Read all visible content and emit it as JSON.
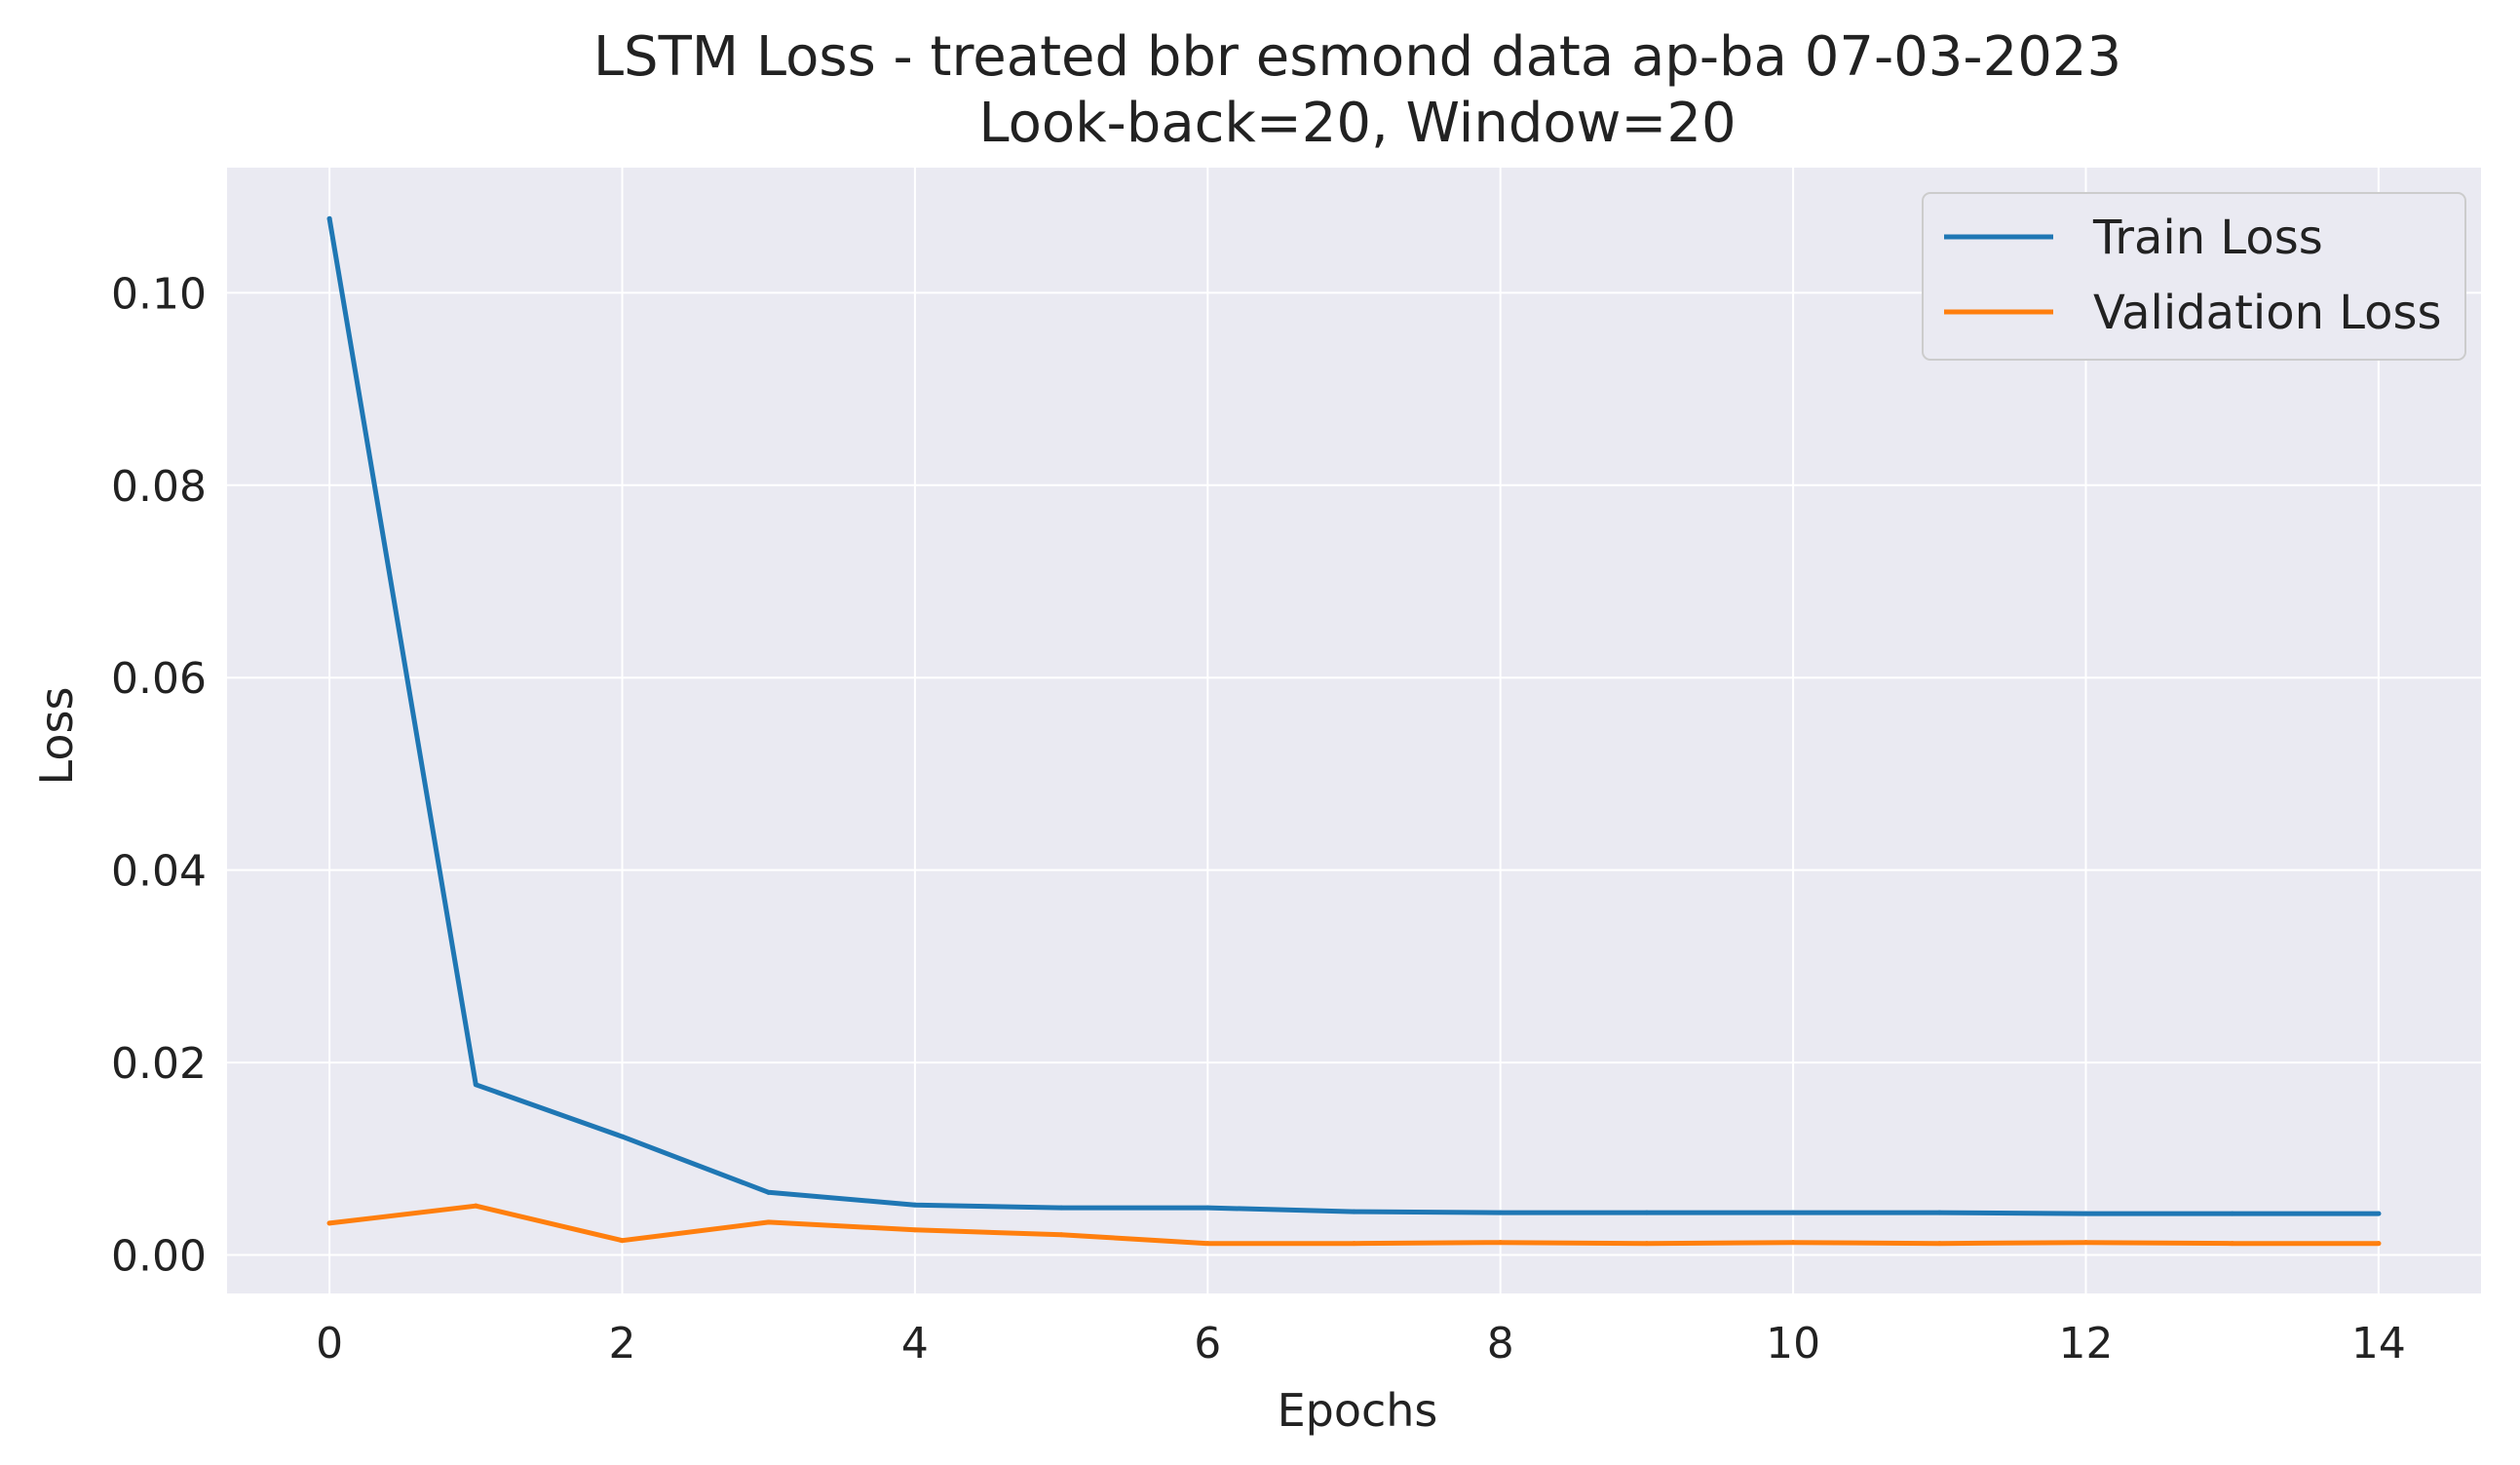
{
  "chart_data": {
    "type": "line",
    "title": "LSTM Loss - treated bbr esmond data ap-ba 07-03-2023",
    "subtitle": "Look-back=20, Window=20",
    "xlabel": "Epochs",
    "ylabel": "Loss",
    "xlim": [
      -0.7,
      14.7
    ],
    "ylim": [
      -0.004,
      0.113
    ],
    "xticks": [
      0,
      2,
      4,
      6,
      8,
      10,
      12,
      14
    ],
    "xtick_labels": [
      "0",
      "2",
      "4",
      "6",
      "8",
      "10",
      "12",
      "14"
    ],
    "yticks": [
      0.0,
      0.02,
      0.04,
      0.06,
      0.08,
      0.1
    ],
    "ytick_labels": [
      "0.00",
      "0.02",
      "0.04",
      "0.06",
      "0.08",
      "0.10"
    ],
    "grid": true,
    "legend_position": "top-right",
    "x": [
      0,
      1,
      2,
      3,
      4,
      5,
      6,
      7,
      8,
      9,
      10,
      11,
      12,
      13,
      14
    ],
    "series": [
      {
        "name": "Train Loss",
        "color": "#1f77b4",
        "values": [
          0.1077,
          0.0177,
          0.0123,
          0.0065,
          0.0052,
          0.0049,
          0.0049,
          0.0045,
          0.0044,
          0.0044,
          0.0044,
          0.0044,
          0.0043,
          0.0043,
          0.0043
        ]
      },
      {
        "name": "Validation Loss",
        "color": "#ff7f0e",
        "values": [
          0.0033,
          0.0051,
          0.0015,
          0.0034,
          0.0026,
          0.0021,
          0.0012,
          0.0012,
          0.0013,
          0.0012,
          0.0013,
          0.0012,
          0.0013,
          0.0012,
          0.0012
        ]
      }
    ]
  }
}
